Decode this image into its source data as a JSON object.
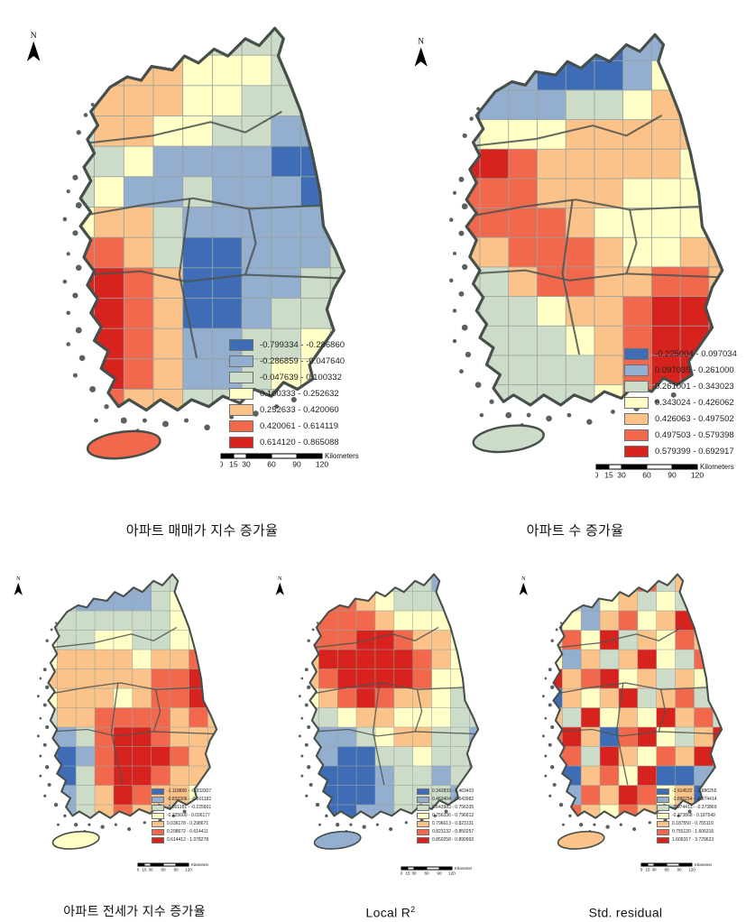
{
  "figure": {
    "class_colors": [
      "#3E6DB5",
      "#93AECE",
      "#CDDBC9",
      "#FFFFC6",
      "#FBC289",
      "#F2684C",
      "#D8221E"
    ],
    "outline_color": "#474F4B",
    "north_label": "N",
    "scalebar": {
      "ticks": [
        "0",
        "15",
        "30",
        "60",
        "90",
        "120"
      ],
      "unit_label": "Kilometers"
    }
  },
  "maps": [
    {
      "id": "apartment-sale-price-index-growth",
      "title": "아파트 매매가 지수 증가율",
      "legend": [
        "-0.799334 - -0.286860",
        "-0.286859 - -0.047640",
        "-0.047639 - 0.100332",
        "0.100333 - 0.252632",
        "0.252633 - 0.420060",
        "0.420061 - 0.614119",
        "0.614120 - 0.865088"
      ],
      "grid": [
        "3333222222",
        "2444333222",
        "2444332222",
        "2443322112",
        "2231111001",
        "2311211101",
        "3442111112",
        "5542001112",
        "6654001122",
        "6654001223",
        "6654112233",
        "5654112332",
        "5544222322"
      ],
      "jeju_class": 5
    },
    {
      "id": "apartment-count-growth",
      "title": "아파트 수 증가율",
      "legend": [
        "-0.225004 - 0.097034",
        "0.097035 - 0.261000",
        "0.261001 - 0.343023",
        "0.343024 - 0.426062",
        "0.426063 - 0.497502",
        "0.497503 - 0.579398",
        "0.579399 - 0.692917"
      ],
      "grid": [
        "1000001112",
        "1110001333",
        "0111223443",
        "2333444443",
        "6654444433",
        "5554443334",
        "5555433334",
        "4455543344",
        "2245544554",
        "2223445666",
        "2222345666",
        "2222245665",
        "2222235654"
      ],
      "jeju_class": 2
    },
    {
      "id": "apartment-jeonse-price-index-growth",
      "title": "아파트 전세가 지수 증가율",
      "legend": [
        "-1.118800 - -0.833307",
        "-0.833306 - -0.501182",
        "-0.501181 - -0.225601",
        "-0.225600 - 0.036177",
        "0.036178 - 0.298671",
        "0.298672 - 0.614411",
        "0.614412 - 1.078278"
      ],
      "grid": [
        "2211112233",
        "2211112333",
        "2222222333",
        "3223322334",
        "3444434455",
        "4444445565",
        "3444345565",
        "2445555454",
        "1125665444",
        "0015666544",
        "0025665443",
        "0124654433",
        "1124544332"
      ],
      "jeju_class": 3
    },
    {
      "id": "local-r2",
      "title": "Local R",
      "title_sup": "2",
      "legend": [
        "0.342833 - 0.463403",
        "0.463404 - 0.643982",
        "0.643983 - 0.756335",
        "0.756336 - 0.796612",
        "0.796613 - 0.823131",
        "0.823132 - 0.850257",
        "0.850258 - 0.890992"
      ],
      "grid": [
        "3443322112",
        "4554322233",
        "5555433333",
        "5556654433",
        "4666665433",
        "4566665332",
        "3456544322",
        "2234433322",
        "1112344221",
        "1100223221",
        "0000122122",
        "0000122212",
        "0001122222"
      ],
      "jeju_class": 1
    },
    {
      "id": "std-residual",
      "title": "Std. residual",
      "legend": [
        "-2.914522 - -1.880255",
        "-1.880254 - -0.974414",
        "-0.974413 - -0.373869",
        "-0.373868 - 0.187549",
        "0.187550 - 0.755119",
        "0.755120 - 1.606316",
        "1.606317 - 3.729623"
      ],
      "grid": [
        "4304352454",
        "5213423245",
        "6314534624",
        "4536243546",
        "3142463254",
        "6456342436",
        "0434624523",
        "4263436452",
        "5640563246",
        "4526435465",
        "6045360015",
        "4154653404",
        "2543542543"
      ],
      "jeju_class": 4
    }
  ]
}
